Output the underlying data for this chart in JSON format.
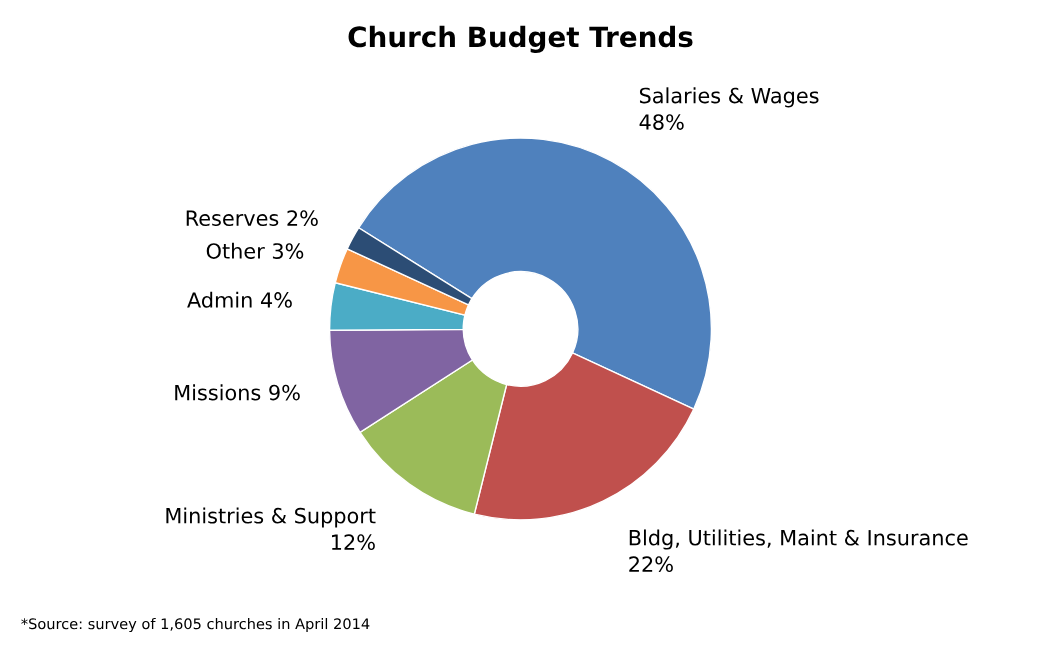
{
  "chart_data": {
    "type": "donut",
    "title": "Church Budget Trends",
    "categories": [
      "Salaries & Wages",
      "Bldg, Utilities, Maint & Insurance",
      "Ministries & Support",
      "Missions",
      "Admin",
      "Other",
      "Reserves"
    ],
    "values": [
      48,
      22,
      12,
      9,
      4,
      3,
      2
    ],
    "value_labels": [
      "48%",
      "22%",
      "12%",
      "9%",
      "4%",
      "3%",
      "2%"
    ],
    "colors": [
      "#4f81bd",
      "#c0504d",
      "#9bbb59",
      "#8064a2",
      "#4bacc6",
      "#f79646",
      "#2c4d75"
    ],
    "legend": false,
    "annotations": [
      "*Source: survey of 1,605 churches in April 2014"
    ]
  }
}
